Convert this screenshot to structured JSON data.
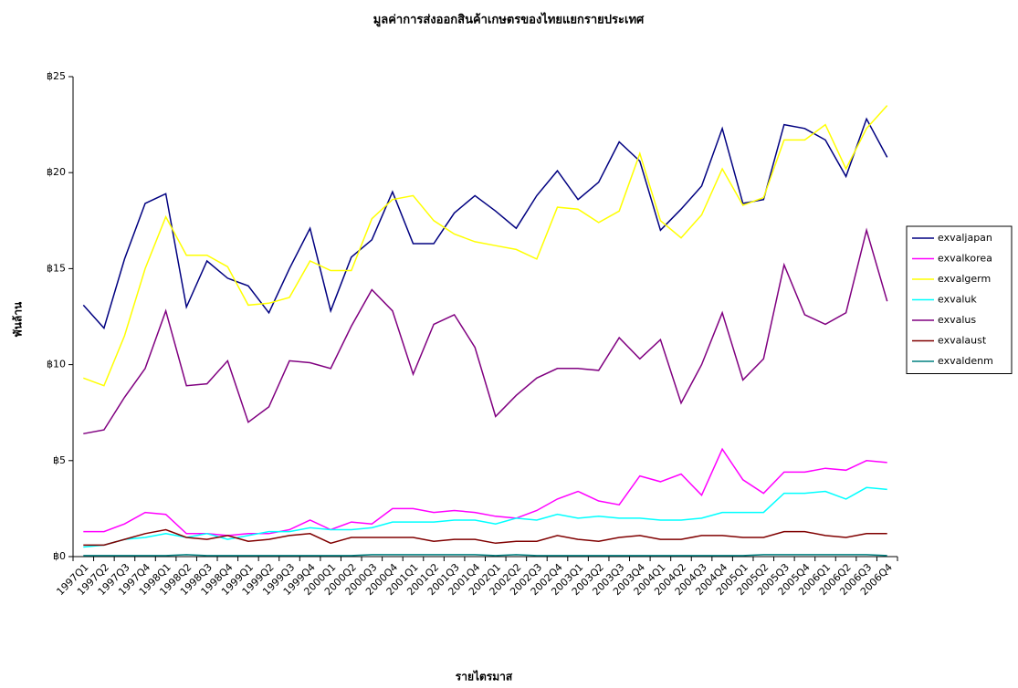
{
  "chart_data": {
    "type": "line",
    "title": "มูลค่าการส่งออกสินค้าเกษตรของไทยแยกรายประเทศ",
    "y_label": "พันล้าน",
    "x_label": "รายไตรมาส",
    "categories": [
      "1997Q1",
      "1997Q2",
      "1997Q3",
      "1997Q4",
      "1998Q1",
      "1998Q2",
      "1998Q3",
      "1998Q4",
      "1999Q1",
      "1999Q2",
      "1999Q3",
      "1999Q4",
      "2000Q1",
      "2000Q2",
      "2000Q3",
      "2000Q4",
      "2001Q1",
      "2001Q2",
      "2001Q3",
      "2001Q4",
      "2002Q1",
      "2002Q2",
      "2002Q3",
      "2002Q4",
      "2003Q1",
      "2003Q2",
      "2003Q3",
      "2003Q4",
      "2004Q1",
      "2004Q2",
      "2004Q3",
      "2004Q4",
      "2005Q1",
      "2005Q2",
      "2005Q3",
      "2005Q4",
      "2006Q1",
      "2006Q2",
      "2006Q3",
      "2006Q4"
    ],
    "ylim": [
      0,
      25
    ],
    "yticks": [
      {
        "value": 0,
        "label": "฿0"
      },
      {
        "value": 5,
        "label": "฿5"
      },
      {
        "value": 10,
        "label": "฿10"
      },
      {
        "value": 15,
        "label": "฿15"
      },
      {
        "value": 20,
        "label": "฿20"
      },
      {
        "value": 25,
        "label": "฿25"
      }
    ],
    "legend": "right",
    "series": [
      {
        "name": "exvaljapan",
        "color": "#000080",
        "values": [
          13.1,
          11.9,
          15.5,
          18.4,
          18.9,
          13.0,
          15.4,
          14.5,
          14.1,
          12.7,
          15.0,
          17.1,
          12.8,
          15.6,
          16.5,
          19.0,
          16.3,
          16.3,
          17.9,
          18.8,
          18.0,
          17.1,
          18.8,
          20.1,
          18.6,
          19.5,
          21.6,
          20.6,
          17.0,
          18.1,
          19.3,
          22.3,
          18.4,
          18.6,
          22.5,
          22.3,
          21.7,
          19.8,
          22.8,
          20.8
        ]
      },
      {
        "name": "exvalkorea",
        "color": "#ff00ff",
        "values": [
          1.3,
          1.3,
          1.7,
          2.3,
          2.2,
          1.2,
          1.2,
          1.1,
          1.2,
          1.2,
          1.4,
          1.9,
          1.4,
          1.8,
          1.7,
          2.5,
          2.5,
          2.3,
          2.4,
          2.3,
          2.1,
          2.0,
          2.4,
          3.0,
          3.4,
          2.9,
          2.7,
          4.2,
          3.9,
          4.3,
          3.2,
          5.6,
          4.0,
          3.3,
          4.4,
          4.4,
          4.6,
          4.5,
          5.0,
          4.9
        ]
      },
      {
        "name": "exvalgerm",
        "color": "#ffff00",
        "values": [
          9.3,
          8.9,
          11.5,
          15.0,
          17.7,
          15.7,
          15.7,
          15.1,
          13.1,
          13.2,
          13.5,
          15.4,
          14.9,
          14.9,
          17.6,
          18.6,
          18.8,
          17.5,
          16.8,
          16.4,
          16.2,
          16.0,
          15.5,
          18.2,
          18.1,
          17.4,
          18.0,
          21.0,
          17.5,
          16.6,
          17.8,
          20.2,
          18.3,
          18.7,
          21.7,
          21.7,
          22.5,
          20.2,
          22.3,
          23.5
        ]
      },
      {
        "name": "exvaluk",
        "color": "#00ffff",
        "values": [
          0.5,
          0.6,
          0.9,
          1.0,
          1.2,
          1.0,
          1.2,
          0.9,
          1.1,
          1.3,
          1.3,
          1.5,
          1.4,
          1.4,
          1.5,
          1.8,
          1.8,
          1.8,
          1.9,
          1.9,
          1.7,
          2.0,
          1.9,
          2.2,
          2.0,
          2.1,
          2.0,
          2.0,
          1.9,
          1.9,
          2.0,
          2.3,
          2.3,
          2.3,
          3.3,
          3.3,
          3.4,
          3.0,
          3.6,
          3.5
        ]
      },
      {
        "name": "exvalus",
        "color": "#800080",
        "values": [
          6.4,
          6.6,
          8.3,
          9.8,
          12.8,
          8.9,
          9.0,
          10.2,
          7.0,
          7.8,
          10.2,
          10.1,
          9.8,
          12.0,
          13.9,
          12.8,
          9.5,
          12.1,
          12.6,
          10.9,
          7.3,
          8.4,
          9.3,
          9.8,
          9.8,
          9.7,
          11.4,
          10.3,
          11.3,
          8.0,
          10.0,
          12.7,
          9.2,
          10.3,
          15.2,
          12.6,
          12.1,
          12.7,
          17.0,
          13.3
        ]
      },
      {
        "name": "exvalaust",
        "color": "#800000",
        "values": [
          0.6,
          0.6,
          0.9,
          1.2,
          1.4,
          1.0,
          0.9,
          1.1,
          0.8,
          0.9,
          1.1,
          1.2,
          0.7,
          1.0,
          1.0,
          1.0,
          1.0,
          0.8,
          0.9,
          0.9,
          0.7,
          0.8,
          0.8,
          1.1,
          0.9,
          0.8,
          1.0,
          1.1,
          0.9,
          0.9,
          1.1,
          1.1,
          1.0,
          1.0,
          1.3,
          1.3,
          1.1,
          1.0,
          1.2,
          1.2
        ]
      },
      {
        "name": "exvaldenm",
        "color": "#008080",
        "values": [
          0.05,
          0.05,
          0.05,
          0.05,
          0.05,
          0.1,
          0.05,
          0.05,
          0.05,
          0.05,
          0.05,
          0.05,
          0.05,
          0.05,
          0.1,
          0.1,
          0.1,
          0.1,
          0.1,
          0.1,
          0.05,
          0.1,
          0.05,
          0.05,
          0.05,
          0.05,
          0.05,
          0.05,
          0.05,
          0.05,
          0.05,
          0.05,
          0.05,
          0.1,
          0.1,
          0.1,
          0.1,
          0.1,
          0.1,
          0.05
        ]
      }
    ]
  }
}
